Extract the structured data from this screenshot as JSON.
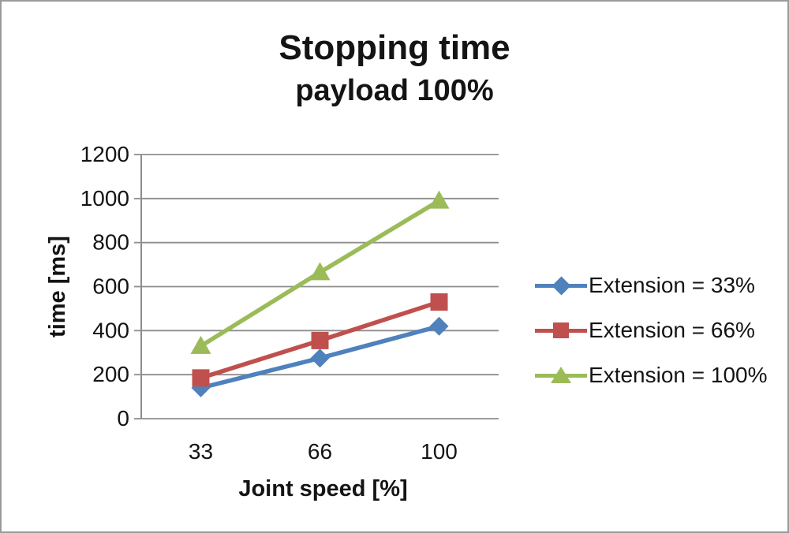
{
  "chart_data": {
    "type": "line",
    "title": "Stopping time",
    "subtitle": "payload 100%",
    "xlabel": "Joint speed [%]",
    "ylabel": "time [ms]",
    "categories": [
      "33",
      "66",
      "100"
    ],
    "series": [
      {
        "name": "Extension = 33%",
        "marker": "diamond",
        "color": "#4F81BD",
        "values": [
          140,
          275,
          420
        ]
      },
      {
        "name": "Extension = 66%",
        "marker": "square",
        "color": "#C0504D",
        "values": [
          185,
          355,
          530
        ]
      },
      {
        "name": "Extension = 100%",
        "marker": "triangle",
        "color": "#9BBB59",
        "values": [
          330,
          665,
          990
        ]
      }
    ],
    "ylim": [
      0,
      1200
    ],
    "ytick_step": 200,
    "yticks": [
      "0",
      "200",
      "400",
      "600",
      "800",
      "1000",
      "1200"
    ],
    "grid": true,
    "legend_position": "right",
    "axis_color": "#8e8e8e",
    "text_color": "#141414"
  }
}
